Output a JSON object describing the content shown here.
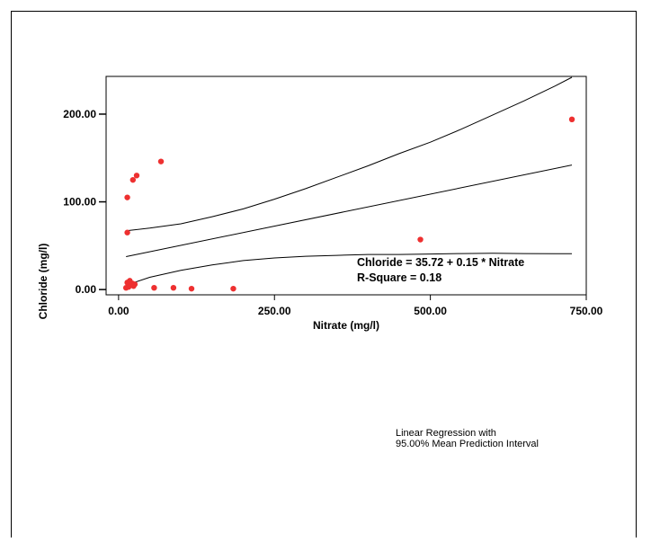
{
  "chart_data": {
    "type": "scatter",
    "xlabel": "Nitrate (mg/l)",
    "ylabel": "Chloride (mg/l)",
    "xlim": [
      -20,
      750
    ],
    "ylim": [
      -6,
      243
    ],
    "x_ticks": [
      0,
      250,
      500,
      750
    ],
    "x_tick_labels": [
      "0.00",
      "250.00",
      "500.00",
      "750.00"
    ],
    "y_ticks": [
      0,
      100,
      200
    ],
    "y_tick_labels": [
      "0.00",
      "100.00",
      "200.00"
    ],
    "grid": false,
    "point_color": "#ee3030",
    "points": [
      {
        "x": 12,
        "y": 2
      },
      {
        "x": 14,
        "y": 8
      },
      {
        "x": 16,
        "y": 3
      },
      {
        "x": 18,
        "y": 10
      },
      {
        "x": 20,
        "y": 5
      },
      {
        "x": 22,
        "y": 7
      },
      {
        "x": 24,
        "y": 4
      },
      {
        "x": 26,
        "y": 6
      },
      {
        "x": 14,
        "y": 65
      },
      {
        "x": 14,
        "y": 105
      },
      {
        "x": 23,
        "y": 125
      },
      {
        "x": 29,
        "y": 130
      },
      {
        "x": 68,
        "y": 146
      },
      {
        "x": 57,
        "y": 2
      },
      {
        "x": 88,
        "y": 2
      },
      {
        "x": 117,
        "y": 1
      },
      {
        "x": 184,
        "y": 1
      },
      {
        "x": 484,
        "y": 57
      },
      {
        "x": 727,
        "y": 194
      }
    ],
    "fit_line": [
      [
        12,
        37.5
      ],
      [
        727,
        142
      ]
    ],
    "upper_band": [
      [
        12,
        67
      ],
      [
        50,
        70
      ],
      [
        100,
        75
      ],
      [
        150,
        83
      ],
      [
        200,
        92
      ],
      [
        250,
        103
      ],
      [
        300,
        115
      ],
      [
        350,
        128
      ],
      [
        400,
        141
      ],
      [
        450,
        155
      ],
      [
        500,
        168
      ],
      [
        550,
        183
      ],
      [
        600,
        199
      ],
      [
        650,
        215
      ],
      [
        700,
        232
      ],
      [
        727,
        242
      ]
    ],
    "lower_band": [
      [
        12,
        5
      ],
      [
        50,
        14
      ],
      [
        100,
        22
      ],
      [
        150,
        28
      ],
      [
        200,
        33
      ],
      [
        250,
        36
      ],
      [
        300,
        38
      ],
      [
        350,
        39
      ],
      [
        400,
        40
      ],
      [
        450,
        40
      ],
      [
        500,
        40.5
      ],
      [
        550,
        41
      ],
      [
        600,
        41.3
      ],
      [
        650,
        41
      ],
      [
        700,
        40.8
      ],
      [
        727,
        40.8
      ]
    ],
    "annotations": {
      "equation": "Chloride = 35.72 + 0.15 * Nitrate",
      "r_square": "R-Square = 0.18",
      "note_line1": "Linear Regression with",
      "note_line2": "95.00% Mean Prediction Interval"
    }
  }
}
